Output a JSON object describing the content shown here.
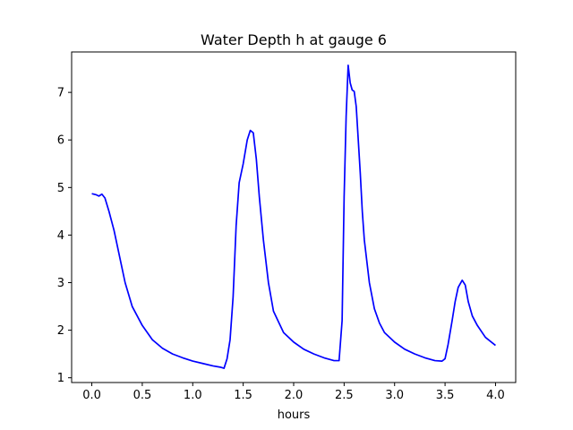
{
  "chart_data": {
    "type": "line",
    "title": "Water Depth h at gauge 6",
    "xlabel": "hours",
    "ylabel": "",
    "xlim": [
      -0.2,
      4.2
    ],
    "ylim": [
      0.9,
      7.85
    ],
    "xticks": [
      0.0,
      0.5,
      1.0,
      1.5,
      2.0,
      2.5,
      3.0,
      3.5,
      4.0
    ],
    "xtick_labels": [
      "0.0",
      "0.5",
      "1.0",
      "1.5",
      "2.0",
      "2.5",
      "3.0",
      "3.5",
      "4.0"
    ],
    "yticks": [
      1,
      2,
      3,
      4,
      5,
      6,
      7
    ],
    "ytick_labels": [
      "1",
      "2",
      "3",
      "4",
      "5",
      "6",
      "7"
    ],
    "grid": false,
    "series": [
      {
        "color": "#0000ff",
        "x": [
          0.0,
          0.04,
          0.07,
          0.1,
          0.13,
          0.17,
          0.22,
          0.28,
          0.33,
          0.4,
          0.5,
          0.6,
          0.7,
          0.8,
          0.9,
          1.0,
          1.1,
          1.2,
          1.28,
          1.31,
          1.34,
          1.37,
          1.4,
          1.43,
          1.46,
          1.5,
          1.54,
          1.57,
          1.6,
          1.63,
          1.66,
          1.7,
          1.75,
          1.8,
          1.9,
          2.0,
          2.1,
          2.2,
          2.3,
          2.4,
          2.45,
          2.48,
          2.5,
          2.52,
          2.54,
          2.56,
          2.58,
          2.6,
          2.62,
          2.64,
          2.66,
          2.68,
          2.7,
          2.75,
          2.8,
          2.85,
          2.9,
          3.0,
          3.1,
          3.2,
          3.3,
          3.4,
          3.47,
          3.5,
          3.53,
          3.57,
          3.6,
          3.63,
          3.67,
          3.7,
          3.73,
          3.77,
          3.82,
          3.9,
          4.0
        ],
        "y": [
          4.87,
          4.85,
          4.82,
          4.86,
          4.78,
          4.5,
          4.1,
          3.5,
          3.0,
          2.5,
          2.1,
          1.8,
          1.62,
          1.5,
          1.42,
          1.35,
          1.3,
          1.25,
          1.22,
          1.2,
          1.4,
          1.8,
          2.7,
          4.2,
          5.1,
          5.5,
          6.0,
          6.2,
          6.15,
          5.6,
          4.8,
          3.9,
          3.0,
          2.4,
          1.95,
          1.75,
          1.6,
          1.5,
          1.42,
          1.36,
          1.36,
          2.2,
          4.8,
          6.5,
          7.57,
          7.2,
          7.05,
          7.02,
          6.7,
          6.0,
          5.3,
          4.5,
          3.9,
          3.0,
          2.45,
          2.15,
          1.95,
          1.75,
          1.6,
          1.5,
          1.42,
          1.36,
          1.35,
          1.4,
          1.7,
          2.2,
          2.6,
          2.9,
          3.05,
          2.95,
          2.6,
          2.3,
          2.1,
          1.85,
          1.68
        ]
      }
    ]
  }
}
